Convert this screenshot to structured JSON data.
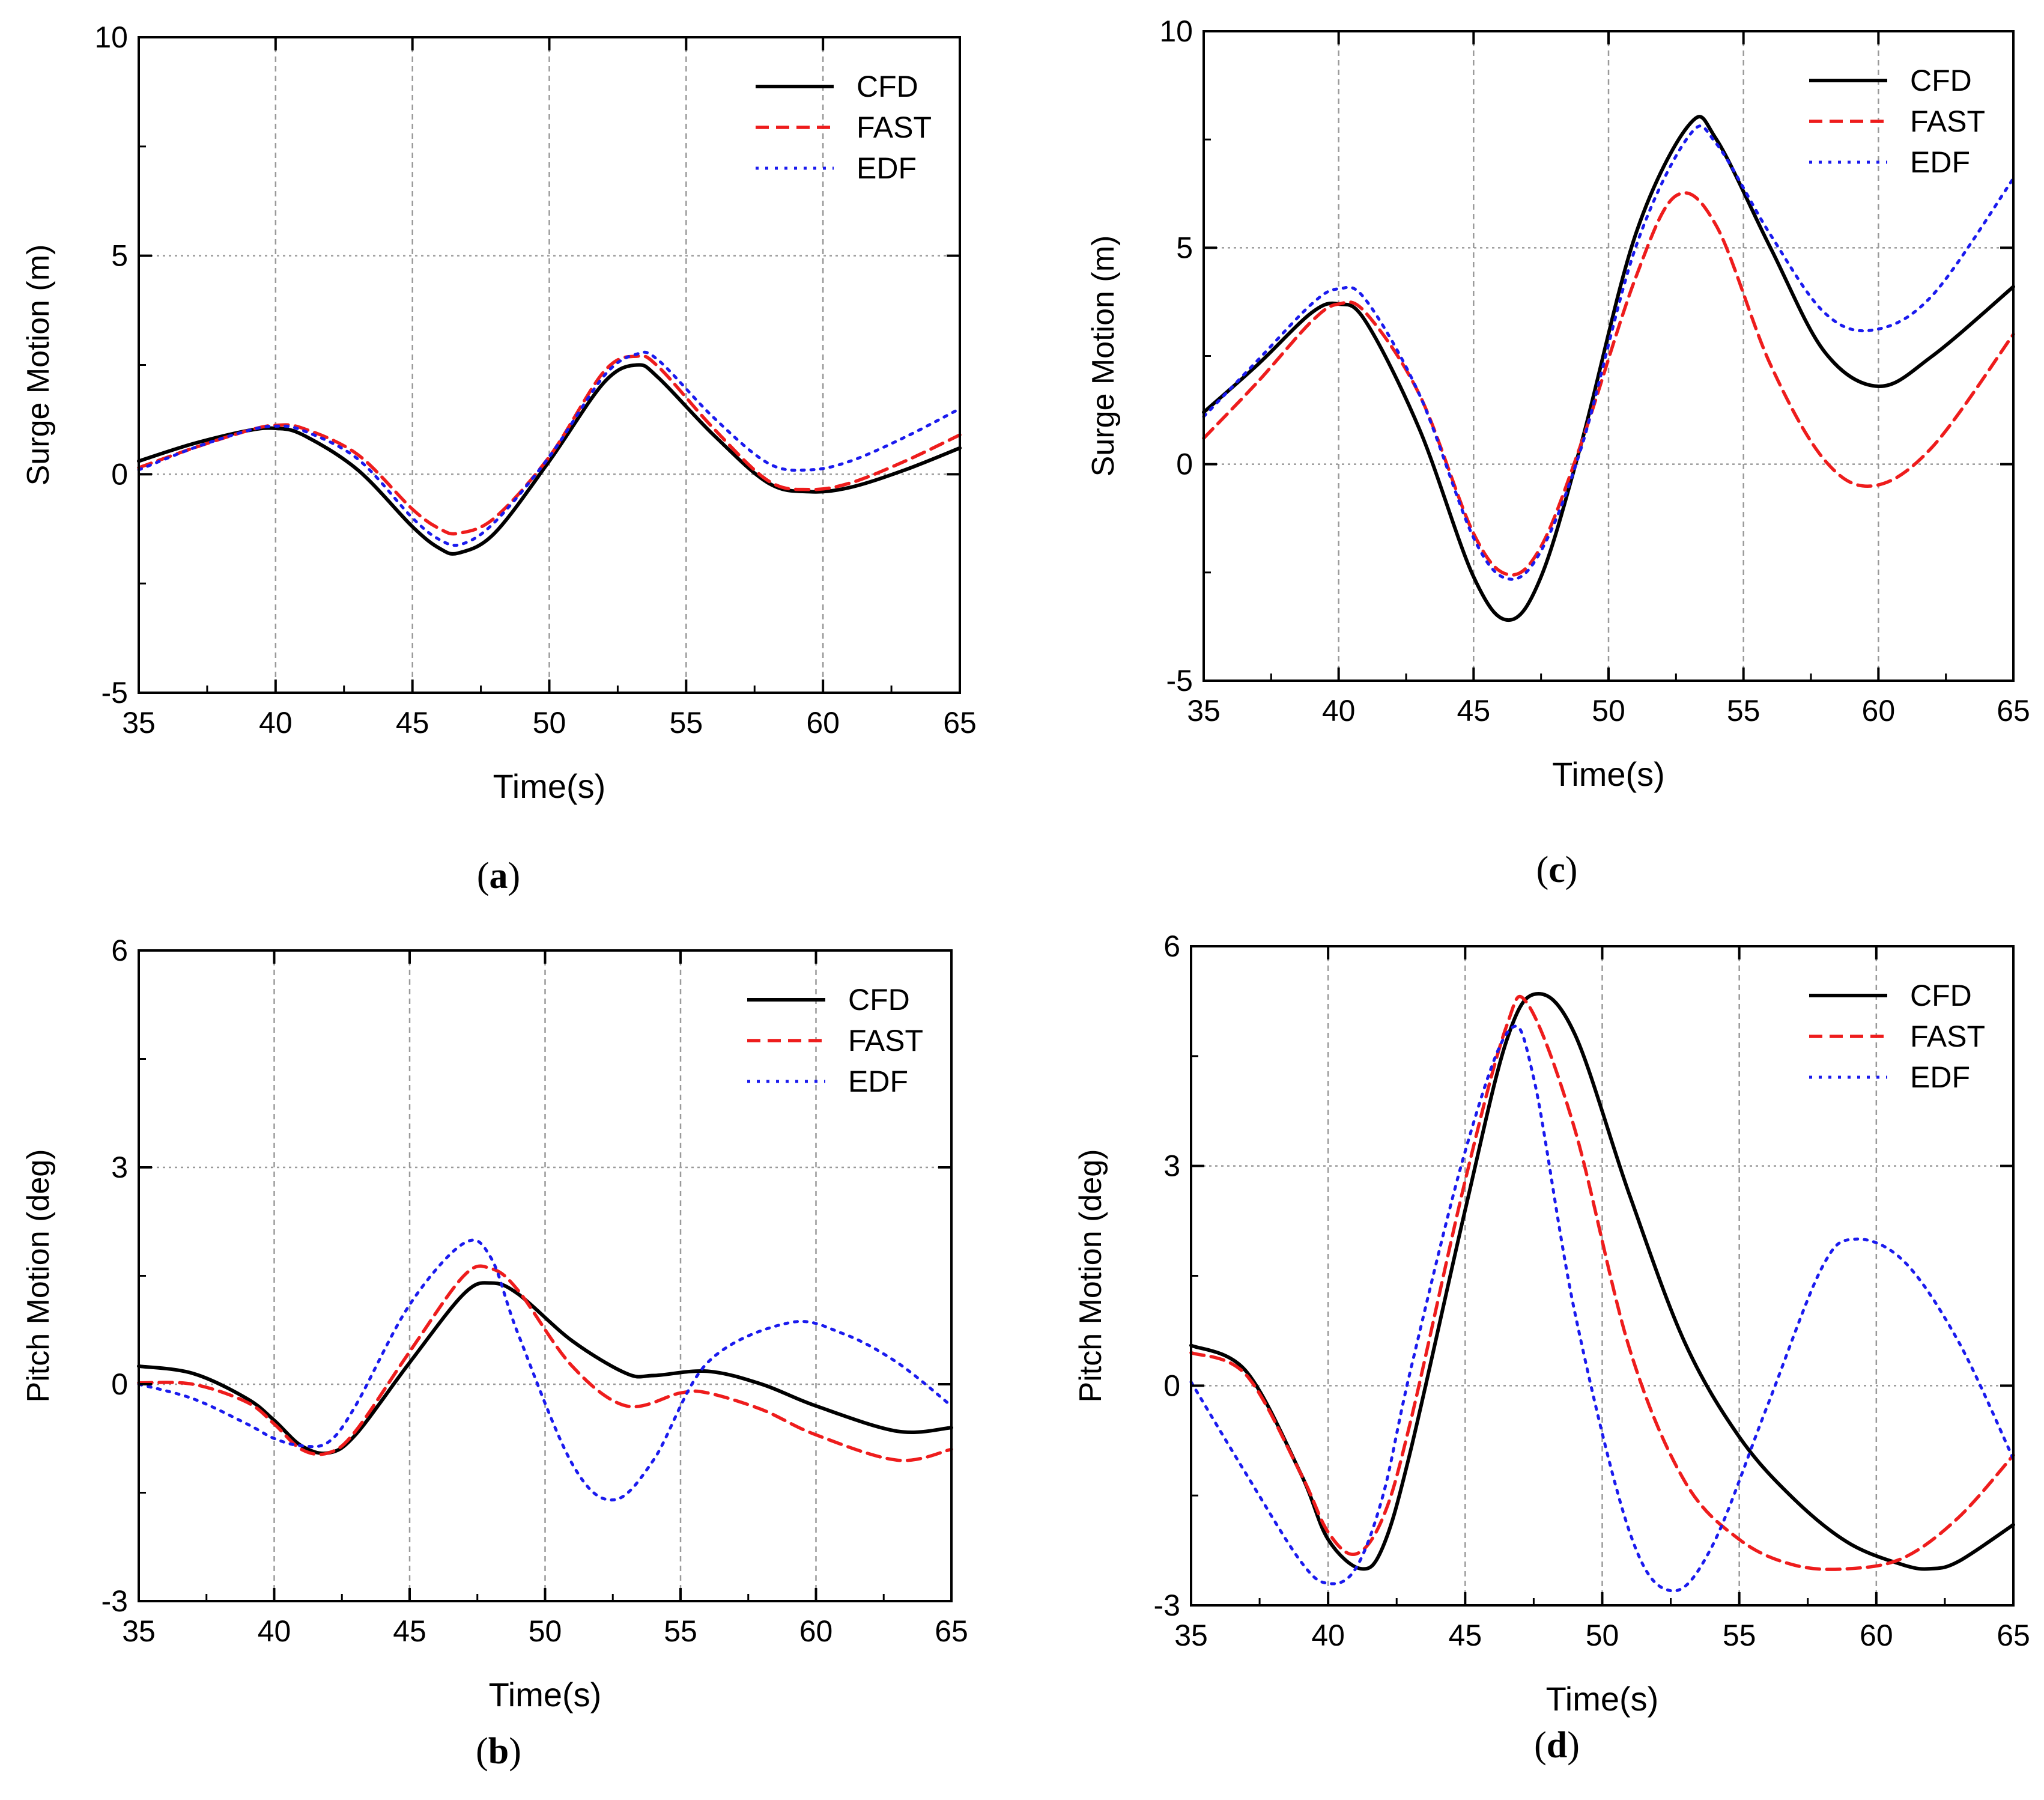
{
  "figure": {
    "legend_labels": [
      "CFD",
      "FAST",
      "EDF"
    ],
    "series_colors": {
      "CFD": "#000000",
      "FAST": "#ee1c1c",
      "EDF": "#1a1aee"
    }
  },
  "chart_data": [
    {
      "id": "a",
      "type": "line",
      "caption": "a",
      "title": "",
      "xlabel": "Time(s)",
      "ylabel": "Surge Motion (m)",
      "xlim": [
        35,
        65
      ],
      "ylim": [
        -5,
        10
      ],
      "xticks": [
        35,
        40,
        45,
        50,
        55,
        60,
        65
      ],
      "yticks": [
        -5,
        0,
        5,
        10
      ],
      "legend_position": "top-right",
      "grid": true,
      "series": [
        {
          "name": "CFD",
          "x": [
            35,
            37,
            39,
            40,
            41,
            43,
            45,
            46,
            46.7,
            48,
            50,
            52,
            53.2,
            54,
            56,
            58,
            59.5,
            61,
            63,
            65
          ],
          "y": [
            0.3,
            0.7,
            1.0,
            1.05,
            0.9,
            0.1,
            -1.2,
            -1.7,
            -1.8,
            -1.35,
            0.3,
            2.1,
            2.5,
            2.2,
            0.9,
            -0.2,
            -0.4,
            -0.3,
            0.1,
            0.6
          ]
        },
        {
          "name": "FAST",
          "x": [
            35,
            37,
            39,
            40,
            41,
            43,
            45,
            46,
            46.7,
            48,
            50,
            52,
            53.2,
            54,
            56,
            58,
            59.5,
            61,
            63,
            65
          ],
          "y": [
            0.15,
            0.6,
            1.0,
            1.12,
            1.05,
            0.45,
            -0.8,
            -1.25,
            -1.35,
            -1.0,
            0.4,
            2.35,
            2.7,
            2.45,
            1.05,
            -0.15,
            -0.35,
            -0.2,
            0.3,
            0.9
          ]
        },
        {
          "name": "EDF",
          "x": [
            35,
            37,
            39,
            40,
            41,
            43,
            45,
            46,
            46.8,
            48,
            50,
            52,
            53.2,
            54,
            56,
            58,
            59.5,
            61,
            63,
            65
          ],
          "y": [
            0.1,
            0.6,
            1.0,
            1.1,
            1.0,
            0.35,
            -1.0,
            -1.5,
            -1.6,
            -1.1,
            0.4,
            2.25,
            2.75,
            2.6,
            1.3,
            0.25,
            0.1,
            0.3,
            0.85,
            1.5
          ]
        }
      ]
    },
    {
      "id": "b",
      "type": "line",
      "caption": "b",
      "title": "",
      "xlabel": "Time(s)",
      "ylabel": "Pitch Motion (deg)",
      "xlim": [
        35,
        65
      ],
      "ylim": [
        -3,
        6
      ],
      "xticks": [
        35,
        40,
        45,
        50,
        55,
        60,
        65
      ],
      "yticks": [
        -3,
        0,
        3,
        6
      ],
      "legend_position": "top-right",
      "grid": true,
      "series": [
        {
          "name": "CFD",
          "x": [
            35,
            37,
            39,
            40,
            41,
            42,
            43,
            45,
            47,
            48,
            49,
            51,
            53,
            54,
            56,
            58,
            60,
            63,
            65
          ],
          "y": [
            0.25,
            0.15,
            -0.2,
            -0.5,
            -0.85,
            -0.95,
            -0.7,
            0.3,
            1.25,
            1.4,
            1.25,
            0.6,
            0.15,
            0.12,
            0.18,
            0.0,
            -0.3,
            -0.65,
            -0.6
          ]
        },
        {
          "name": "FAST",
          "x": [
            35,
            37,
            39,
            40,
            41,
            42,
            43,
            45,
            47,
            48,
            49,
            51,
            53,
            55,
            56,
            58,
            60,
            63,
            65
          ],
          "y": [
            0.02,
            0.0,
            -0.25,
            -0.55,
            -0.9,
            -0.95,
            -0.65,
            0.45,
            1.5,
            1.6,
            1.3,
            0.25,
            -0.3,
            -0.12,
            -0.12,
            -0.35,
            -0.7,
            -1.05,
            -0.9
          ]
        },
        {
          "name": "EDF",
          "x": [
            35,
            37,
            39,
            40,
            41,
            42,
            43,
            45,
            47,
            48,
            49,
            51,
            52.5,
            54,
            56,
            59,
            61,
            63,
            65
          ],
          "y": [
            0.0,
            -0.2,
            -0.55,
            -0.75,
            -0.85,
            -0.8,
            -0.3,
            1.1,
            1.95,
            1.75,
            0.7,
            -1.1,
            -1.6,
            -1.05,
            0.3,
            0.85,
            0.7,
            0.3,
            -0.3
          ]
        }
      ]
    },
    {
      "id": "c",
      "type": "line",
      "caption": "c",
      "title": "",
      "xlabel": "Time(s)",
      "ylabel": "Surge Motion (m)",
      "xlim": [
        35,
        65
      ],
      "ylim": [
        -5,
        10
      ],
      "xticks": [
        35,
        40,
        45,
        50,
        55,
        60,
        65
      ],
      "yticks": [
        -5,
        0,
        5,
        10
      ],
      "legend_position": "top-right",
      "grid": true,
      "series": [
        {
          "name": "CFD",
          "x": [
            35,
            37,
            39,
            40,
            41,
            43,
            45,
            46.3,
            47.5,
            49,
            51,
            53,
            54,
            56,
            58,
            60,
            62,
            65
          ],
          "y": [
            1.2,
            2.3,
            3.5,
            3.7,
            3.3,
            0.8,
            -2.6,
            -3.6,
            -2.6,
            0.5,
            5.3,
            7.85,
            7.5,
            5.0,
            2.6,
            1.8,
            2.5,
            4.1
          ]
        },
        {
          "name": "FAST",
          "x": [
            35,
            37,
            39,
            40,
            41,
            43,
            45,
            46.3,
            47.5,
            49,
            51,
            52.5,
            54,
            56,
            58,
            59.8,
            62,
            65
          ],
          "y": [
            0.6,
            1.9,
            3.3,
            3.7,
            3.5,
            1.6,
            -1.6,
            -2.55,
            -1.9,
            0.5,
            4.3,
            6.2,
            5.5,
            2.3,
            0.1,
            -0.5,
            0.4,
            3.0
          ]
        },
        {
          "name": "EDF",
          "x": [
            35,
            37,
            39,
            40,
            41,
            43,
            45,
            46.3,
            47.5,
            49,
            51,
            53,
            54,
            56,
            58,
            59.8,
            62,
            65
          ],
          "y": [
            1.1,
            2.4,
            3.7,
            4.05,
            3.8,
            1.6,
            -1.7,
            -2.65,
            -2.0,
            0.4,
            5.0,
            7.6,
            7.4,
            5.3,
            3.5,
            3.1,
            3.9,
            6.6
          ]
        }
      ]
    },
    {
      "id": "d",
      "type": "line",
      "caption": "d",
      "title": "",
      "xlabel": "Time(s)",
      "ylabel": "Pitch Motion (deg)",
      "xlim": [
        35,
        65
      ],
      "ylim": [
        -3,
        6
      ],
      "xticks": [
        35,
        40,
        45,
        50,
        55,
        60,
        65
      ],
      "yticks": [
        -3,
        0,
        3,
        6
      ],
      "legend_position": "top-right",
      "grid": true,
      "series": [
        {
          "name": "CFD",
          "x": [
            35,
            37,
            39,
            40,
            41.2,
            42,
            43,
            45,
            46.5,
            47.6,
            49,
            51,
            53,
            55,
            57,
            59,
            61,
            62,
            63,
            65
          ],
          "y": [
            0.55,
            0.2,
            -1.2,
            -2.1,
            -2.5,
            -2.2,
            -0.9,
            2.4,
            4.7,
            5.35,
            4.8,
            2.6,
            0.6,
            -0.7,
            -1.55,
            -2.15,
            -2.45,
            -2.5,
            -2.4,
            -1.9
          ]
        },
        {
          "name": "FAST",
          "x": [
            35,
            37,
            39,
            40,
            41,
            42,
            43,
            45,
            46.5,
            47.3,
            49,
            51,
            53,
            55,
            57,
            59,
            61,
            63,
            65
          ],
          "y": [
            0.45,
            0.15,
            -1.2,
            -2.0,
            -2.3,
            -1.8,
            -0.5,
            2.8,
            4.9,
            5.2,
            3.5,
            0.5,
            -1.3,
            -2.1,
            -2.45,
            -2.5,
            -2.35,
            -1.8,
            -0.95
          ]
        },
        {
          "name": "EDF",
          "x": [
            35,
            37,
            39,
            40,
            41,
            42,
            43,
            45,
            46.6,
            47.5,
            49,
            51,
            52.5,
            54,
            56,
            58,
            59.2,
            61,
            63,
            65
          ],
          "y": [
            0.05,
            -1.2,
            -2.4,
            -2.7,
            -2.5,
            -1.5,
            0.2,
            3.2,
            4.85,
            4.2,
            1.0,
            -2.0,
            -2.8,
            -2.2,
            -0.3,
            1.6,
            2.0,
            1.7,
            0.6,
            -1.0
          ]
        }
      ]
    }
  ]
}
